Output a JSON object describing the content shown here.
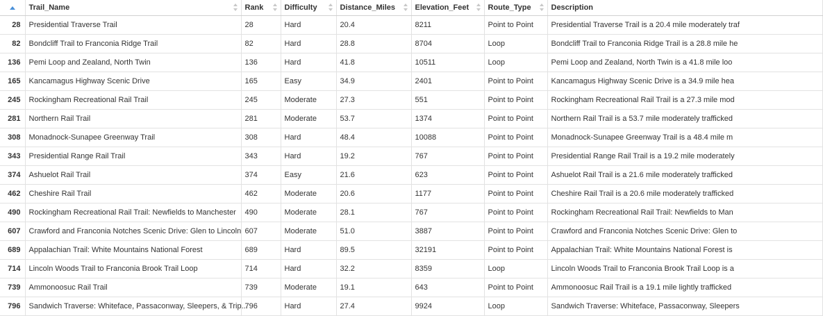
{
  "columns": {
    "index": "",
    "trail_name": "Trail_Name",
    "rank": "Rank",
    "difficulty": "Difficulty",
    "distance": "Distance_Miles",
    "elevation": "Elevation_Feet",
    "route_type": "Route_Type",
    "description": "Description"
  },
  "rows": [
    {
      "idx": "28",
      "name": "Presidential Traverse Trail",
      "rank": "28",
      "difficulty": "Hard",
      "distance": "20.4",
      "elevation": "8211",
      "route": "Point to Point",
      "desc": "Presidential Traverse Trail is a 20.4 mile moderately traf"
    },
    {
      "idx": "82",
      "name": "Bondcliff Trail to Franconia Ridge Trail",
      "rank": "82",
      "difficulty": "Hard",
      "distance": "28.8",
      "elevation": "8704",
      "route": "Loop",
      "desc": "Bondcliff Trail to Franconia Ridge Trail is a 28.8 mile he"
    },
    {
      "idx": "136",
      "name": "Pemi Loop and Zealand, North Twin",
      "rank": "136",
      "difficulty": "Hard",
      "distance": "41.8",
      "elevation": "10511",
      "route": "Loop",
      "desc": "Pemi Loop and Zealand, North Twin is a 41.8 mile loo"
    },
    {
      "idx": "165",
      "name": "Kancamagus Highway Scenic Drive",
      "rank": "165",
      "difficulty": "Easy",
      "distance": "34.9",
      "elevation": "2401",
      "route": "Point to Point",
      "desc": "Kancamagus Highway Scenic Drive is a 34.9 mile hea"
    },
    {
      "idx": "245",
      "name": "Rockingham Recreational Rail Trail",
      "rank": "245",
      "difficulty": "Moderate",
      "distance": "27.3",
      "elevation": "551",
      "route": "Point to Point",
      "desc": "Rockingham Recreational Rail Trail is a 27.3 mile mod"
    },
    {
      "idx": "281",
      "name": "Northern Rail Trail",
      "rank": "281",
      "difficulty": "Moderate",
      "distance": "53.7",
      "elevation": "1374",
      "route": "Point to Point",
      "desc": "Northern Rail Trail is a 53.7 mile moderately trafficked"
    },
    {
      "idx": "308",
      "name": "Monadnock-Sunapee Greenway Trail",
      "rank": "308",
      "difficulty": "Hard",
      "distance": "48.4",
      "elevation": "10088",
      "route": "Point to Point",
      "desc": "Monadnock-Sunapee Greenway Trail is a 48.4 mile m"
    },
    {
      "idx": "343",
      "name": "Presidential Range Rail Trail",
      "rank": "343",
      "difficulty": "Hard",
      "distance": "19.2",
      "elevation": "767",
      "route": "Point to Point",
      "desc": "Presidential Range Rail Trail is a 19.2 mile moderately"
    },
    {
      "idx": "374",
      "name": "Ashuelot Rail Trail",
      "rank": "374",
      "difficulty": "Easy",
      "distance": "21.6",
      "elevation": "623",
      "route": "Point to Point",
      "desc": "Ashuelot Rail Trail is a 21.6 mile moderately trafficked"
    },
    {
      "idx": "462",
      "name": "Cheshire Rail Trail",
      "rank": "462",
      "difficulty": "Moderate",
      "distance": "20.6",
      "elevation": "1177",
      "route": "Point to Point",
      "desc": "Cheshire Rail Trail is a 20.6 mile moderately trafficked"
    },
    {
      "idx": "490",
      "name": "Rockingham Recreational Rail Trail: Newfields to Manchester",
      "rank": "490",
      "difficulty": "Moderate",
      "distance": "28.1",
      "elevation": "767",
      "route": "Point to Point",
      "desc": "Rockingham Recreational Rail Trail: Newfields to Man"
    },
    {
      "idx": "607",
      "name": "Crawford and Franconia Notches Scenic Drive: Glen to Lincoln",
      "rank": "607",
      "difficulty": "Moderate",
      "distance": "51.0",
      "elevation": "3887",
      "route": "Point to Point",
      "desc": "Crawford and Franconia Notches Scenic Drive: Glen to"
    },
    {
      "idx": "689",
      "name": "Appalachian Trail: White Mountains National Forest",
      "rank": "689",
      "difficulty": "Hard",
      "distance": "89.5",
      "elevation": "32191",
      "route": "Point to Point",
      "desc": "Appalachian Trail: White Mountains National Forest is"
    },
    {
      "idx": "714",
      "name": "Lincoln Woods Trail to Franconia Brook Trail Loop",
      "rank": "714",
      "difficulty": "Hard",
      "distance": "32.2",
      "elevation": "8359",
      "route": "Loop",
      "desc": "Lincoln Woods Trail to Franconia Brook Trail Loop is a"
    },
    {
      "idx": "739",
      "name": "Ammonoosuc Rail Trail",
      "rank": "739",
      "difficulty": "Moderate",
      "distance": "19.1",
      "elevation": "643",
      "route": "Point to Point",
      "desc": "Ammonoosuc Rail Trail is a 19.1 mile lightly trafficked"
    },
    {
      "idx": "796",
      "name": "Sandwich Traverse: Whiteface, Passaconway, Sleepers, & Trip...",
      "rank": "796",
      "difficulty": "Hard",
      "distance": "27.4",
      "elevation": "9924",
      "route": "Loop",
      "desc": "Sandwich Traverse: Whiteface, Passaconway, Sleepers"
    }
  ]
}
